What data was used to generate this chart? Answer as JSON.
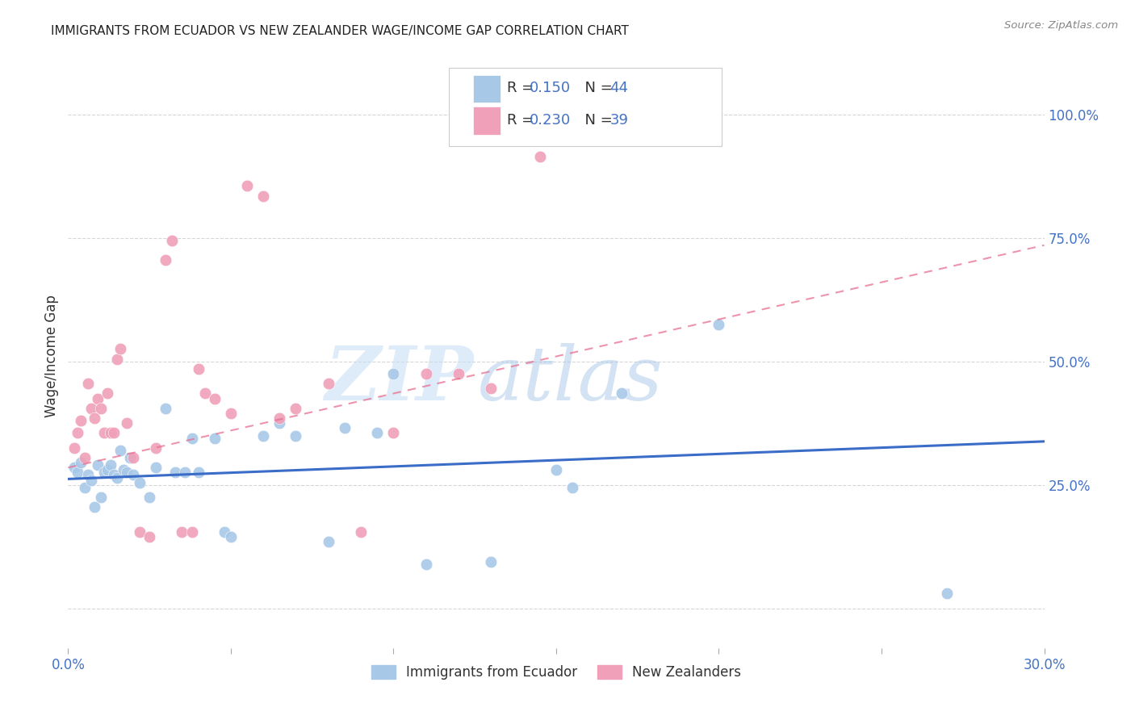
{
  "title": "IMMIGRANTS FROM ECUADOR VS NEW ZEALANDER WAGE/INCOME GAP CORRELATION CHART",
  "source": "Source: ZipAtlas.com",
  "ylabel": "Wage/Income Gap",
  "xlim": [
    0.0,
    0.3
  ],
  "ylim": [
    -0.08,
    1.1
  ],
  "watermark_zip": "ZIP",
  "watermark_atlas": "atlas",
  "legend_blue_r": "R = ",
  "legend_blue_rv": "0.150",
  "legend_blue_n": "  N = ",
  "legend_blue_nv": "44",
  "legend_pink_r": "R = ",
  "legend_pink_rv": "0.230",
  "legend_pink_n": "  N = ",
  "legend_pink_nv": "39",
  "blue_color": "#A8C8E8",
  "pink_color": "#F0A0B8",
  "blue_line_color": "#3B6CC7",
  "pink_line_color": "#E87090",
  "label_color": "#4472C4",
  "text_color": "#333333",
  "grid_color": "#CCCCCC",
  "background_color": "#FFFFFF",
  "blue_scatter_x": [
    0.002,
    0.003,
    0.004,
    0.005,
    0.006,
    0.007,
    0.008,
    0.009,
    0.01,
    0.011,
    0.012,
    0.013,
    0.014,
    0.015,
    0.016,
    0.017,
    0.018,
    0.019,
    0.02,
    0.022,
    0.025,
    0.027,
    0.03,
    0.033,
    0.036,
    0.038,
    0.04,
    0.045,
    0.048,
    0.05,
    0.06,
    0.065,
    0.07,
    0.08,
    0.085,
    0.095,
    0.1,
    0.11,
    0.13,
    0.15,
    0.155,
    0.17,
    0.2,
    0.27
  ],
  "blue_scatter_y": [
    0.285,
    0.275,
    0.295,
    0.245,
    0.27,
    0.26,
    0.205,
    0.29,
    0.225,
    0.275,
    0.28,
    0.29,
    0.27,
    0.265,
    0.32,
    0.28,
    0.275,
    0.305,
    0.27,
    0.255,
    0.225,
    0.285,
    0.405,
    0.275,
    0.275,
    0.345,
    0.275,
    0.345,
    0.155,
    0.145,
    0.35,
    0.375,
    0.35,
    0.135,
    0.365,
    0.355,
    0.475,
    0.09,
    0.095,
    0.28,
    0.245,
    0.435,
    0.575,
    0.03
  ],
  "pink_scatter_x": [
    0.002,
    0.003,
    0.004,
    0.005,
    0.006,
    0.007,
    0.008,
    0.009,
    0.01,
    0.011,
    0.012,
    0.013,
    0.014,
    0.015,
    0.016,
    0.018,
    0.02,
    0.022,
    0.025,
    0.027,
    0.03,
    0.032,
    0.035,
    0.038,
    0.04,
    0.042,
    0.045,
    0.05,
    0.055,
    0.06,
    0.065,
    0.07,
    0.08,
    0.09,
    0.1,
    0.11,
    0.12,
    0.13,
    0.145
  ],
  "pink_scatter_y": [
    0.325,
    0.355,
    0.38,
    0.305,
    0.455,
    0.405,
    0.385,
    0.425,
    0.405,
    0.355,
    0.435,
    0.355,
    0.355,
    0.505,
    0.525,
    0.375,
    0.305,
    0.155,
    0.145,
    0.325,
    0.705,
    0.745,
    0.155,
    0.155,
    0.485,
    0.435,
    0.425,
    0.395,
    0.855,
    0.835,
    0.385,
    0.405,
    0.455,
    0.155,
    0.355,
    0.475,
    0.475,
    0.445,
    0.915
  ],
  "blue_trend_x": [
    0.0,
    0.3
  ],
  "blue_trend_y": [
    0.262,
    0.338
  ],
  "pink_trend_x": [
    0.0,
    0.3
  ],
  "pink_trend_y": [
    0.285,
    0.735
  ]
}
